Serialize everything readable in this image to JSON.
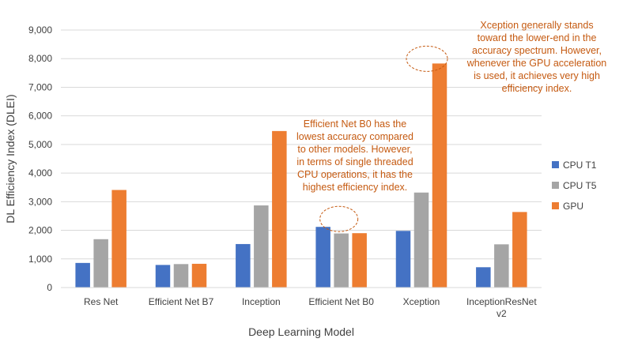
{
  "chart_data": {
    "type": "bar",
    "title": "",
    "xlabel": "Deep Learning Model",
    "ylabel": "DL Efficiency Index (DLEI)",
    "categories": [
      "Res Net",
      "Efficient Net B7",
      "Inception",
      "Efficient Net B0",
      "Xception",
      [
        "InceptionResNet",
        "v2"
      ]
    ],
    "series": [
      {
        "name": "CPU T1",
        "color": "#4472c4",
        "values": [
          860,
          790,
          1520,
          2120,
          1980,
          710
        ]
      },
      {
        "name": "CPU T5",
        "color": "#a5a5a5",
        "values": [
          1690,
          820,
          2870,
          1890,
          3320,
          1510
        ]
      },
      {
        "name": "GPU",
        "color": "#ed7d31",
        "values": [
          3410,
          830,
          5470,
          1900,
          7830,
          2640
        ]
      }
    ],
    "ylim": [
      0,
      9000
    ],
    "yticks": [
      "0",
      "1,000",
      "2,000",
      "3,000",
      "4,000",
      "5,000",
      "6,000",
      "7,000",
      "8,000",
      "9,000"
    ],
    "grid": true,
    "legend_position": "right",
    "annotations": [
      {
        "lines": [
          "Efficient Net B0 has the",
          "lowest accuracy compared",
          "to other models. However,",
          "in terms of single threaded",
          "CPU operations, it has the",
          "highest efficiency index."
        ],
        "color": "#c55a11",
        "category_index": 3,
        "value": 2120
      },
      {
        "lines": [
          "Xception generally stands",
          "toward the lower-end in the",
          "accuracy spectrum. However,",
          "whenever the GPU acceleration",
          "is used, it achieves very high",
          "efficiency index."
        ],
        "color": "#c55a11",
        "category_index": 4,
        "value": 7830
      }
    ]
  }
}
